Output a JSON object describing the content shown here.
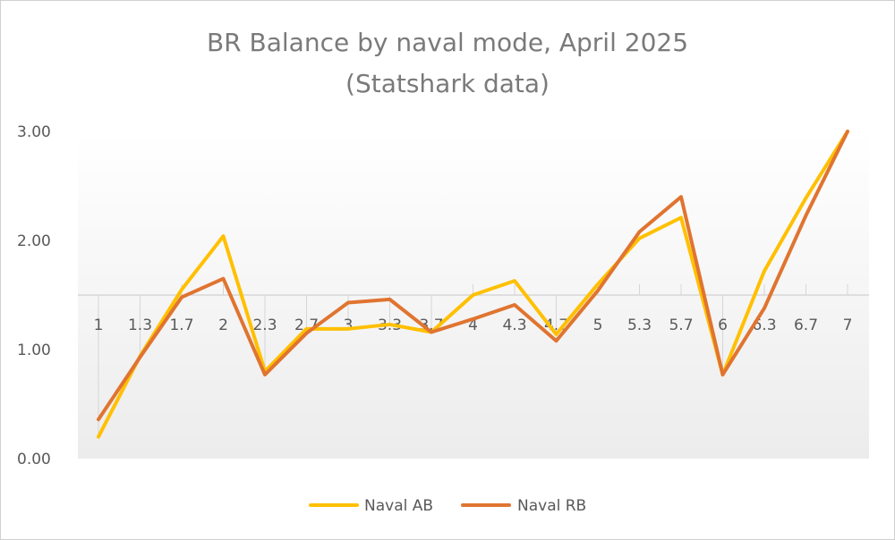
{
  "chart_data": {
    "type": "line",
    "title": [
      "BR Balance by naval mode, April 2025",
      "(Statshark data)"
    ],
    "categories": [
      "1",
      "1.3",
      "1.7",
      "2",
      "2.3",
      "2.7",
      "3",
      "3.3",
      "3.7",
      "4",
      "4.3",
      "4.7",
      "5",
      "5.3",
      "5.7",
      "6",
      "6.3",
      "6.7",
      "7"
    ],
    "series": [
      {
        "name": "Naval AB",
        "color": "#FFC000",
        "values": [
          0.2,
          0.94,
          1.55,
          2.04,
          0.8,
          1.19,
          1.19,
          1.23,
          1.16,
          1.5,
          1.63,
          1.14,
          1.6,
          2.02,
          2.21,
          0.77,
          1.72,
          2.39,
          3.0
        ]
      },
      {
        "name": "Naval RB",
        "color": "#E07430",
        "values": [
          0.36,
          0.93,
          1.48,
          1.65,
          0.77,
          1.15,
          1.43,
          1.46,
          1.16,
          1.28,
          1.41,
          1.08,
          1.54,
          2.08,
          2.4,
          0.77,
          1.38,
          2.23,
          3.0
        ]
      }
    ],
    "y_tick_labels": [
      "0.00",
      "1.00",
      "2.00",
      "3.00"
    ],
    "ylim": [
      0,
      3
    ],
    "x_axis_crossing": 1.5,
    "grid": false,
    "legend_position": "bottom"
  }
}
